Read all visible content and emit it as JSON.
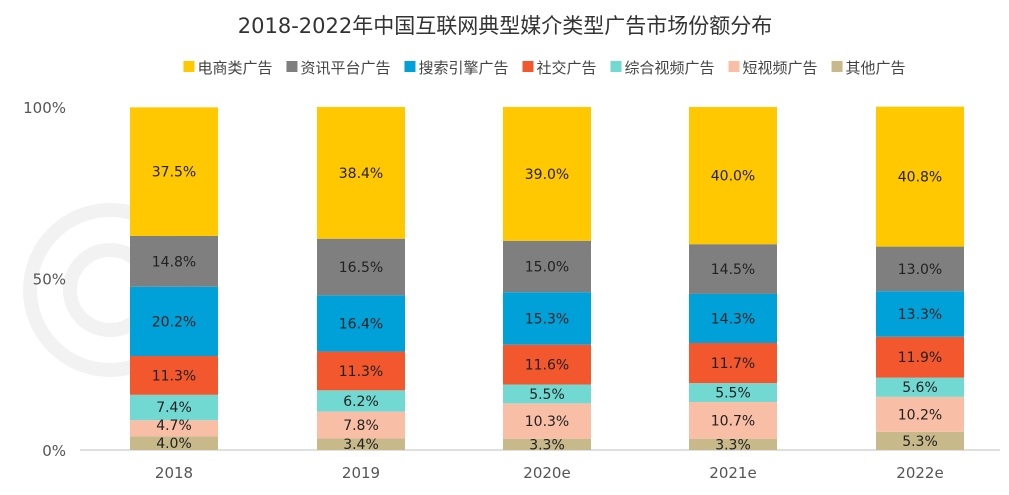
{
  "chart_data": {
    "type": "bar",
    "stacked": true,
    "normalized": true,
    "title": "2018-2022年中国互联网典型媒介类型广告市场份额分布",
    "categories": [
      "2018",
      "2019",
      "2020e",
      "2021e",
      "2022e"
    ],
    "yticks": [
      "0%",
      "50%",
      "100%"
    ],
    "ylim": [
      0,
      100
    ],
    "grid": false,
    "legend_position": "top",
    "watermark": "QUEST MOBILE",
    "series": [
      {
        "name": "其他广告",
        "color": "#C8B98A",
        "values": [
          4.0,
          3.4,
          3.3,
          3.3,
          5.3
        ]
      },
      {
        "name": "短视频广告",
        "color": "#F9BEA6",
        "values": [
          4.7,
          7.8,
          10.3,
          10.7,
          10.2
        ]
      },
      {
        "name": "综合视频广告",
        "color": "#72D9D2",
        "values": [
          7.4,
          6.2,
          5.5,
          5.5,
          5.6
        ]
      },
      {
        "name": "社交广告",
        "color": "#F2572D",
        "values": [
          11.3,
          11.3,
          11.6,
          11.7,
          11.9
        ]
      },
      {
        "name": "搜索引擎广告",
        "color": "#00A0D8",
        "values": [
          20.2,
          16.4,
          15.3,
          14.3,
          13.3
        ]
      },
      {
        "name": "资讯平台广告",
        "color": "#7F7F7F",
        "values": [
          14.8,
          16.5,
          15.0,
          14.5,
          13.0
        ]
      },
      {
        "name": "电商类广告",
        "color": "#FFC800",
        "values": [
          37.5,
          38.4,
          39.0,
          40.0,
          40.8
        ]
      }
    ],
    "legend_order": [
      "电商类广告",
      "资讯平台广告",
      "搜索引擎广告",
      "社交广告",
      "综合视频广告",
      "短视频广告",
      "其他广告"
    ]
  }
}
